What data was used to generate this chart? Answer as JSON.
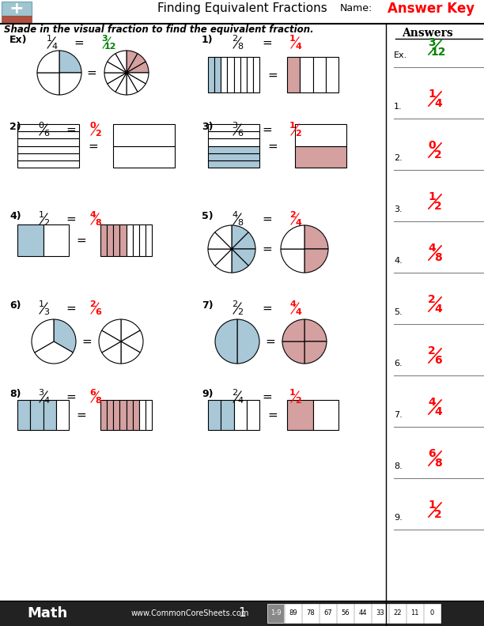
{
  "title": "Finding Equivalent Fractions",
  "subtitle": "Shade in the visual fraction to find the equivalent fraction.",
  "answer_key_label": "Answer Key",
  "name_label": "Name:",
  "answers_title": "Answers",
  "answers": [
    {
      "label": "Ex.",
      "num": "3",
      "den": "12",
      "color": "green"
    },
    {
      "label": "1.",
      "num": "1",
      "den": "4",
      "color": "red"
    },
    {
      "label": "2.",
      "num": "0",
      "den": "2",
      "color": "red"
    },
    {
      "label": "3.",
      "num": "1",
      "den": "2",
      "color": "red"
    },
    {
      "label": "4.",
      "num": "4",
      "den": "8",
      "color": "red"
    },
    {
      "label": "5.",
      "num": "2",
      "den": "4",
      "color": "red"
    },
    {
      "label": "6.",
      "num": "2",
      "den": "6",
      "color": "red"
    },
    {
      "label": "7.",
      "num": "4",
      "den": "4",
      "color": "red"
    },
    {
      "label": "8.",
      "num": "6",
      "den": "8",
      "color": "red"
    },
    {
      "label": "9.",
      "num": "1",
      "den": "2",
      "color": "red"
    }
  ],
  "blue": "#a8c8d8",
  "pink": "#d4a0a0",
  "white": "#ffffff",
  "bg": "#ffffff",
  "footer_label": "Math",
  "footer_url": "www.CommonCoreSheets.com",
  "footer_num": "1",
  "score_labels": [
    "1-9",
    "89",
    "78",
    "67",
    "56",
    "44",
    "33",
    "22",
    "11",
    "0"
  ]
}
